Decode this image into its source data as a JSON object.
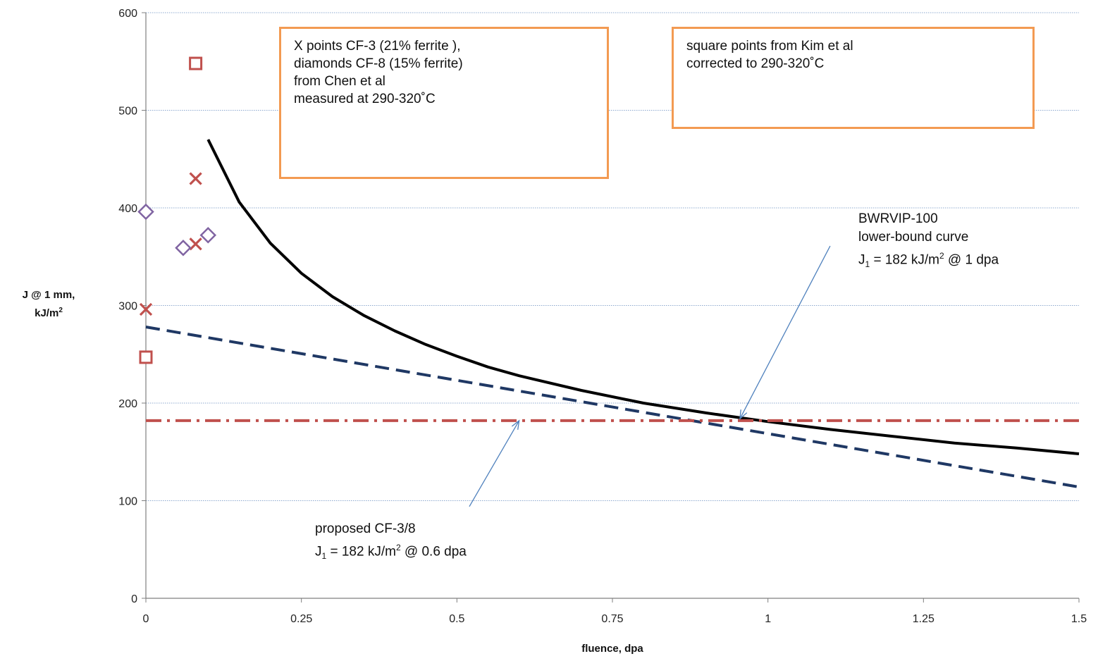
{
  "chart_data": {
    "type": "scatter",
    "xlabel": "fluence, dpa",
    "ylabel": {
      "line1": "J @ 1 mm,",
      "line2": "kJ/m",
      "sup": "2"
    },
    "xlim": [
      0,
      1.5
    ],
    "ylim": [
      0,
      600
    ],
    "x_ticks": [
      "0",
      "0.25",
      "0.5",
      "0.75",
      "1",
      "1.25",
      "1.5"
    ],
    "y_ticks": [
      "0",
      "100",
      "200",
      "300",
      "400",
      "500",
      "600"
    ],
    "grid": "horizontal",
    "series": [
      {
        "marker": "x",
        "color": "#c0504d",
        "points": [
          [
            0,
            296
          ],
          [
            0.08,
            430
          ],
          [
            0.08,
            363
          ]
        ]
      },
      {
        "marker": "diamond",
        "color": "#8064a2",
        "points": [
          [
            0,
            396
          ],
          [
            0.06,
            359
          ],
          [
            0.1,
            372
          ]
        ]
      },
      {
        "marker": "square",
        "color": "#c0504d",
        "points": [
          [
            0,
            247
          ],
          [
            0.08,
            548
          ]
        ]
      },
      {
        "line": "solid",
        "color": "#000000",
        "points": [
          [
            0.1,
            470
          ],
          [
            0.15,
            406
          ],
          [
            0.2,
            364
          ],
          [
            0.25,
            333
          ],
          [
            0.3,
            309
          ],
          [
            0.35,
            290
          ],
          [
            0.4,
            274
          ],
          [
            0.45,
            260
          ],
          [
            0.5,
            248
          ],
          [
            0.55,
            237
          ],
          [
            0.6,
            228
          ],
          [
            0.7,
            213
          ],
          [
            0.8,
            200
          ],
          [
            0.9,
            190
          ],
          [
            1.0,
            181
          ],
          [
            1.1,
            173
          ],
          [
            1.2,
            166
          ],
          [
            1.3,
            159
          ],
          [
            1.4,
            154
          ],
          [
            1.5,
            148
          ]
        ]
      },
      {
        "line": "dashed",
        "color": "#1f3864",
        "points": [
          [
            0,
            278
          ],
          [
            1.5,
            114
          ]
        ]
      },
      {
        "line": "dash-dot",
        "color": "#c0504d",
        "points": [
          [
            0,
            182
          ],
          [
            1.5,
            182
          ]
        ]
      }
    ],
    "arrows": [
      {
        "from": [
          1.1,
          361
        ],
        "to": [
          0.955,
          184
        ]
      },
      {
        "from": [
          0.52,
          94
        ],
        "to": [
          0.6,
          182
        ]
      }
    ]
  },
  "notes": [
    {
      "text": "X points CF-3 (21% ferrite ),\ndiamonds CF-8 (15% ferrite)\nfrom Chen et al\nmeasured at 290-320˚C"
    },
    {
      "text": "square points from Kim et al\ncorrected to 290-320˚C"
    }
  ],
  "annotations": {
    "bwrvip": {
      "line1": "BWRVIP-100",
      "line2": "lower-bound  curve",
      "j": "J",
      "j_sub": "1",
      "value": " = 182 kJ/m",
      "value_sup": "2",
      "tail": " @ 1 dpa"
    },
    "proposed": {
      "line1": "proposed CF-3/8",
      "j": "J",
      "j_sub": "1",
      "value": " = 182 kJ/m",
      "value_sup": "2",
      "tail": " @ 0.6 dpa"
    }
  }
}
